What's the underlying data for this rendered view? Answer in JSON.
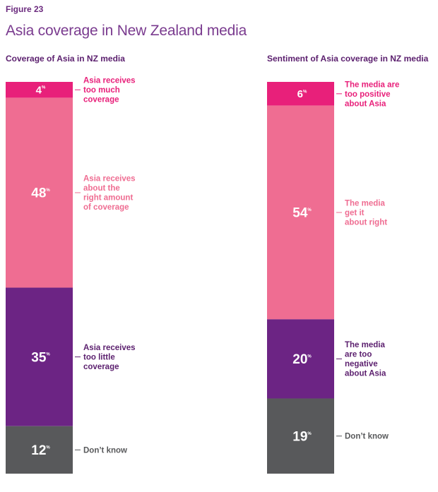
{
  "figure": {
    "label": "Figure 23",
    "title": "Asia coverage in New Zealand media"
  },
  "chart_data": [
    {
      "type": "stacked-bar",
      "title": "Coverage of Asia in NZ media",
      "unit": "%",
      "segments": [
        {
          "value": 4,
          "label": "Asia receives too much coverage",
          "label_lines": [
            "Asia receives",
            "too much",
            "coverage"
          ],
          "color": "#e8207a",
          "label_color": "#e8207a"
        },
        {
          "value": 48,
          "label": "Asia receives about the right amount of coverage",
          "label_lines": [
            "Asia receives",
            "about the",
            "right amount",
            "of coverage"
          ],
          "color": "#ef6d92",
          "label_color": "#ef6d92"
        },
        {
          "value": 35,
          "label": "Asia receives too little coverage",
          "label_lines": [
            "Asia receives",
            "too little",
            "coverage"
          ],
          "color": "#6c2484",
          "label_color": "#5b1f6e"
        },
        {
          "value": 12,
          "label": "Don’t know",
          "label_lines": [
            "Don’t know"
          ],
          "color": "#58595b",
          "label_color": "#58595b"
        }
      ]
    },
    {
      "type": "stacked-bar",
      "title": "Sentiment of Asia coverage in NZ media",
      "unit": "%",
      "segments": [
        {
          "value": 6,
          "label": "The media are too positive about Asia",
          "label_lines": [
            "The media are",
            "too positive",
            "about Asia"
          ],
          "color": "#e8207a",
          "label_color": "#e8207a"
        },
        {
          "value": 54,
          "label": "The media get it about right",
          "label_lines": [
            "The media",
            "get it",
            "about right"
          ],
          "color": "#ef6d92",
          "label_color": "#ef6d92"
        },
        {
          "value": 20,
          "label": "The media are too negative about Asia",
          "label_lines": [
            "The media",
            "are too",
            "negative",
            "about Asia"
          ],
          "color": "#6c2484",
          "label_color": "#5b1f6e"
        },
        {
          "value": 19,
          "label": "Don’t know",
          "label_lines": [
            "Don’t know"
          ],
          "color": "#58595b",
          "label_color": "#58595b"
        }
      ]
    }
  ]
}
